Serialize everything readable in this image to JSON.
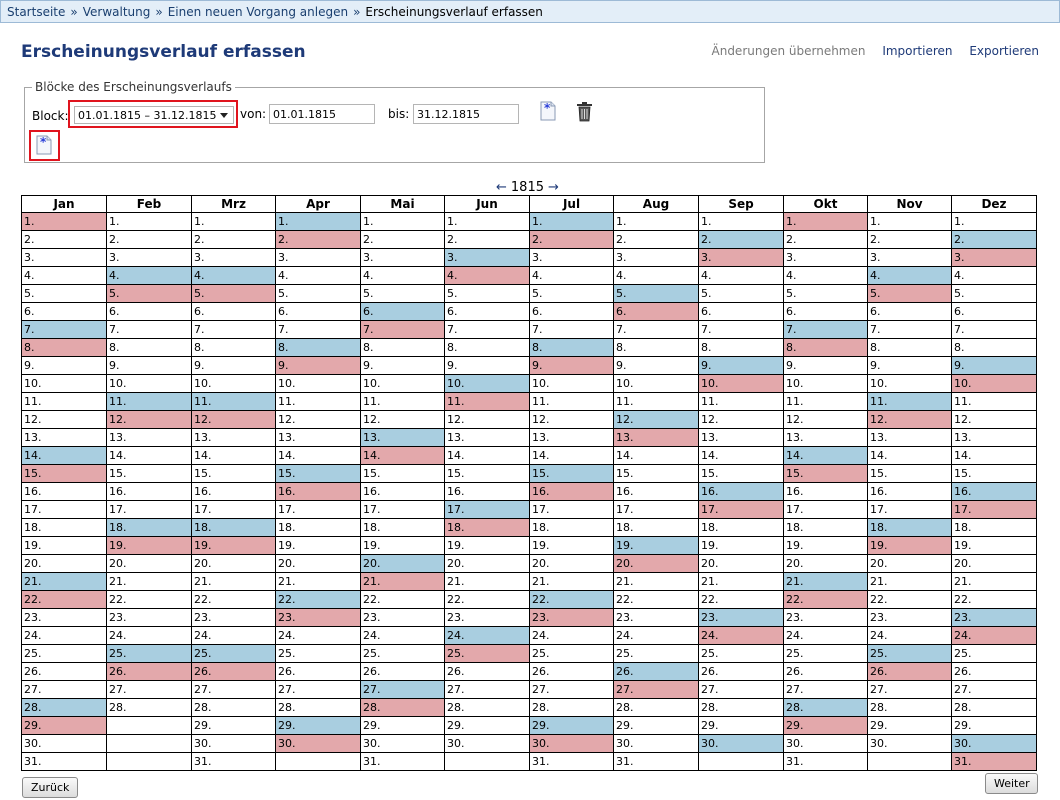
{
  "breadcrumb": {
    "items": [
      "Startseite",
      "Verwaltung",
      "Einen neuen Vorgang anlegen"
    ],
    "current": "Erscheinungsverlauf erfassen",
    "separator": "»"
  },
  "page": {
    "title": "Erscheinungsverlauf erfassen",
    "actions": {
      "apply": "Änderungen übernehmen",
      "import": "Importieren",
      "export": "Exportieren"
    }
  },
  "blocks": {
    "legend": "Blöcke des Erscheinungsverlaufs",
    "block_label": "Block:",
    "block_value": "01.01.1815 – 31.12.1815",
    "from_label": "von:",
    "from_value": "01.01.1815",
    "to_label": "bis:",
    "to_value": "31.12.1815",
    "icons": [
      "add-block-icon",
      "delete-icon",
      "new-block-icon"
    ]
  },
  "calendar": {
    "year": "1815",
    "prev_arrow": "←",
    "next_arrow": "→",
    "months": [
      "Jan",
      "Feb",
      "Mrz",
      "Apr",
      "Mai",
      "Jun",
      "Jul",
      "Aug",
      "Sep",
      "Okt",
      "Nov",
      "Dez"
    ],
    "days_in_month": [
      31,
      28,
      31,
      30,
      31,
      30,
      31,
      31,
      30,
      31,
      30,
      31
    ],
    "blue_days": [
      [
        7,
        14,
        21,
        28
      ],
      [
        4,
        11,
        18,
        25
      ],
      [
        4,
        11,
        18,
        25
      ],
      [
        1,
        8,
        15,
        22,
        29
      ],
      [
        6,
        13,
        20,
        27
      ],
      [
        3,
        10,
        17,
        24
      ],
      [
        1,
        8,
        15,
        22,
        29
      ],
      [
        5,
        12,
        19,
        26
      ],
      [
        2,
        9,
        16,
        23,
        30
      ],
      [
        7,
        14,
        21,
        28
      ],
      [
        4,
        11,
        18,
        25
      ],
      [
        2,
        9,
        16,
        23,
        30
      ]
    ],
    "red_days": [
      [
        1,
        8,
        15,
        22,
        29
      ],
      [
        5,
        12,
        19,
        26
      ],
      [
        5,
        12,
        19,
        26
      ],
      [
        2,
        9,
        16,
        23,
        30
      ],
      [
        7,
        14,
        21,
        28
      ],
      [
        4,
        11,
        18,
        25
      ],
      [
        2,
        9,
        16,
        23,
        30
      ],
      [
        6,
        13,
        20,
        27
      ],
      [
        3,
        10,
        17,
        24
      ],
      [
        1,
        8,
        15,
        22,
        29
      ],
      [
        5,
        12,
        19,
        26
      ],
      [
        3,
        10,
        17,
        24,
        31
      ]
    ],
    "blue_color": "#a9cee0",
    "red_color": "#e3a8ab"
  },
  "footer": {
    "back_label": "Zurück",
    "next_label": "Weiter"
  }
}
